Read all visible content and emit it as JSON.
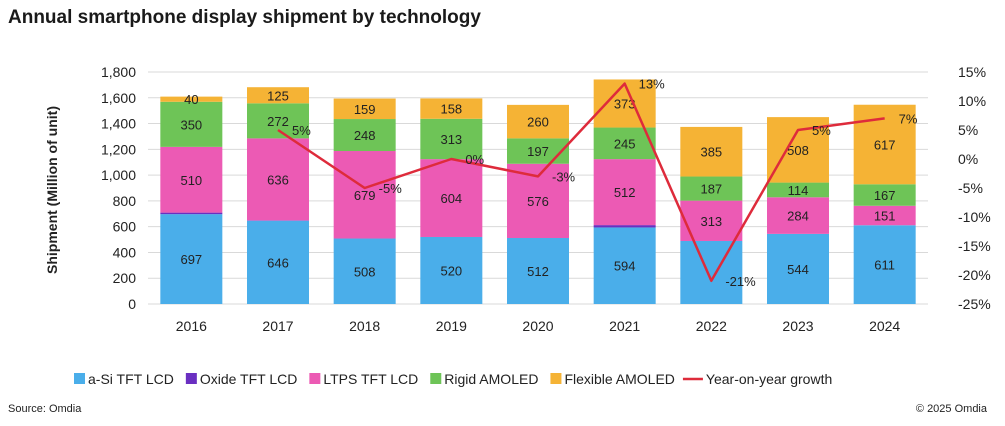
{
  "title": "Annual smartphone display shipment by technology",
  "source": "Source: Omdia",
  "copyright": "© 2025 Omdia",
  "chart_data": {
    "type": "bar",
    "stacked": true,
    "categories": [
      "2016",
      "2017",
      "2018",
      "2019",
      "2020",
      "2021",
      "2022",
      "2023",
      "2024"
    ],
    "ylabel": "Shipment (Million of unit)",
    "ylim": [
      0,
      1800
    ],
    "yticks": [
      "0",
      "200",
      "400",
      "600",
      "800",
      "1,000",
      "1,200",
      "1,400",
      "1,600",
      "1,800"
    ],
    "y2lim": [
      -25,
      15
    ],
    "y2ticks": [
      "-25%",
      "-20%",
      "-15%",
      "-10%",
      "-5%",
      "0%",
      "5%",
      "10%",
      "15%"
    ],
    "series": [
      {
        "name": "a-Si TFT LCD",
        "color": "#4aaeea",
        "values": [
          697,
          646,
          508,
          520,
          512,
          594,
          489,
          544,
          611
        ],
        "labels": [
          "697",
          "646",
          "508",
          "520",
          "512",
          "594",
          "",
          "544",
          "611"
        ]
      },
      {
        "name": "Oxide TFT LCD",
        "color": "#6a2fc1",
        "values": [
          12,
          3,
          0,
          0,
          0,
          18,
          0,
          0,
          0
        ],
        "labels": [
          "",
          "",
          "",
          "",
          "",
          "",
          "",
          "",
          ""
        ]
      },
      {
        "name": "LTPS TFT LCD",
        "color": "#ec5ab4",
        "values": [
          510,
          636,
          679,
          604,
          576,
          512,
          313,
          284,
          151
        ],
        "labels": [
          "510",
          "636",
          "679",
          "604",
          "576",
          "512",
          "313",
          "284",
          "151"
        ]
      },
      {
        "name": "Rigid AMOLED",
        "color": "#6ec457",
        "values": [
          350,
          272,
          248,
          313,
          197,
          245,
          187,
          114,
          167
        ],
        "labels": [
          "350",
          "272",
          "248",
          "313",
          "197",
          "245",
          "187",
          "114",
          "167"
        ]
      },
      {
        "name": "Flexible AMOLED",
        "color": "#f5b335",
        "values": [
          40,
          125,
          159,
          158,
          260,
          373,
          385,
          508,
          617
        ],
        "labels": [
          "40",
          "125",
          "159",
          "158",
          "260",
          "373",
          "385",
          "508",
          "617"
        ]
      }
    ],
    "line": {
      "name": "Year-on-year growth",
      "color": "#de2b3b",
      "values": [
        null,
        5,
        -5,
        0,
        -3,
        13,
        -21,
        5,
        7
      ],
      "labels": [
        "",
        "5%",
        "-5%",
        "0%",
        "-3%",
        "13%",
        "-21%",
        "5%",
        "7%"
      ]
    },
    "legend_position": "bottom"
  }
}
